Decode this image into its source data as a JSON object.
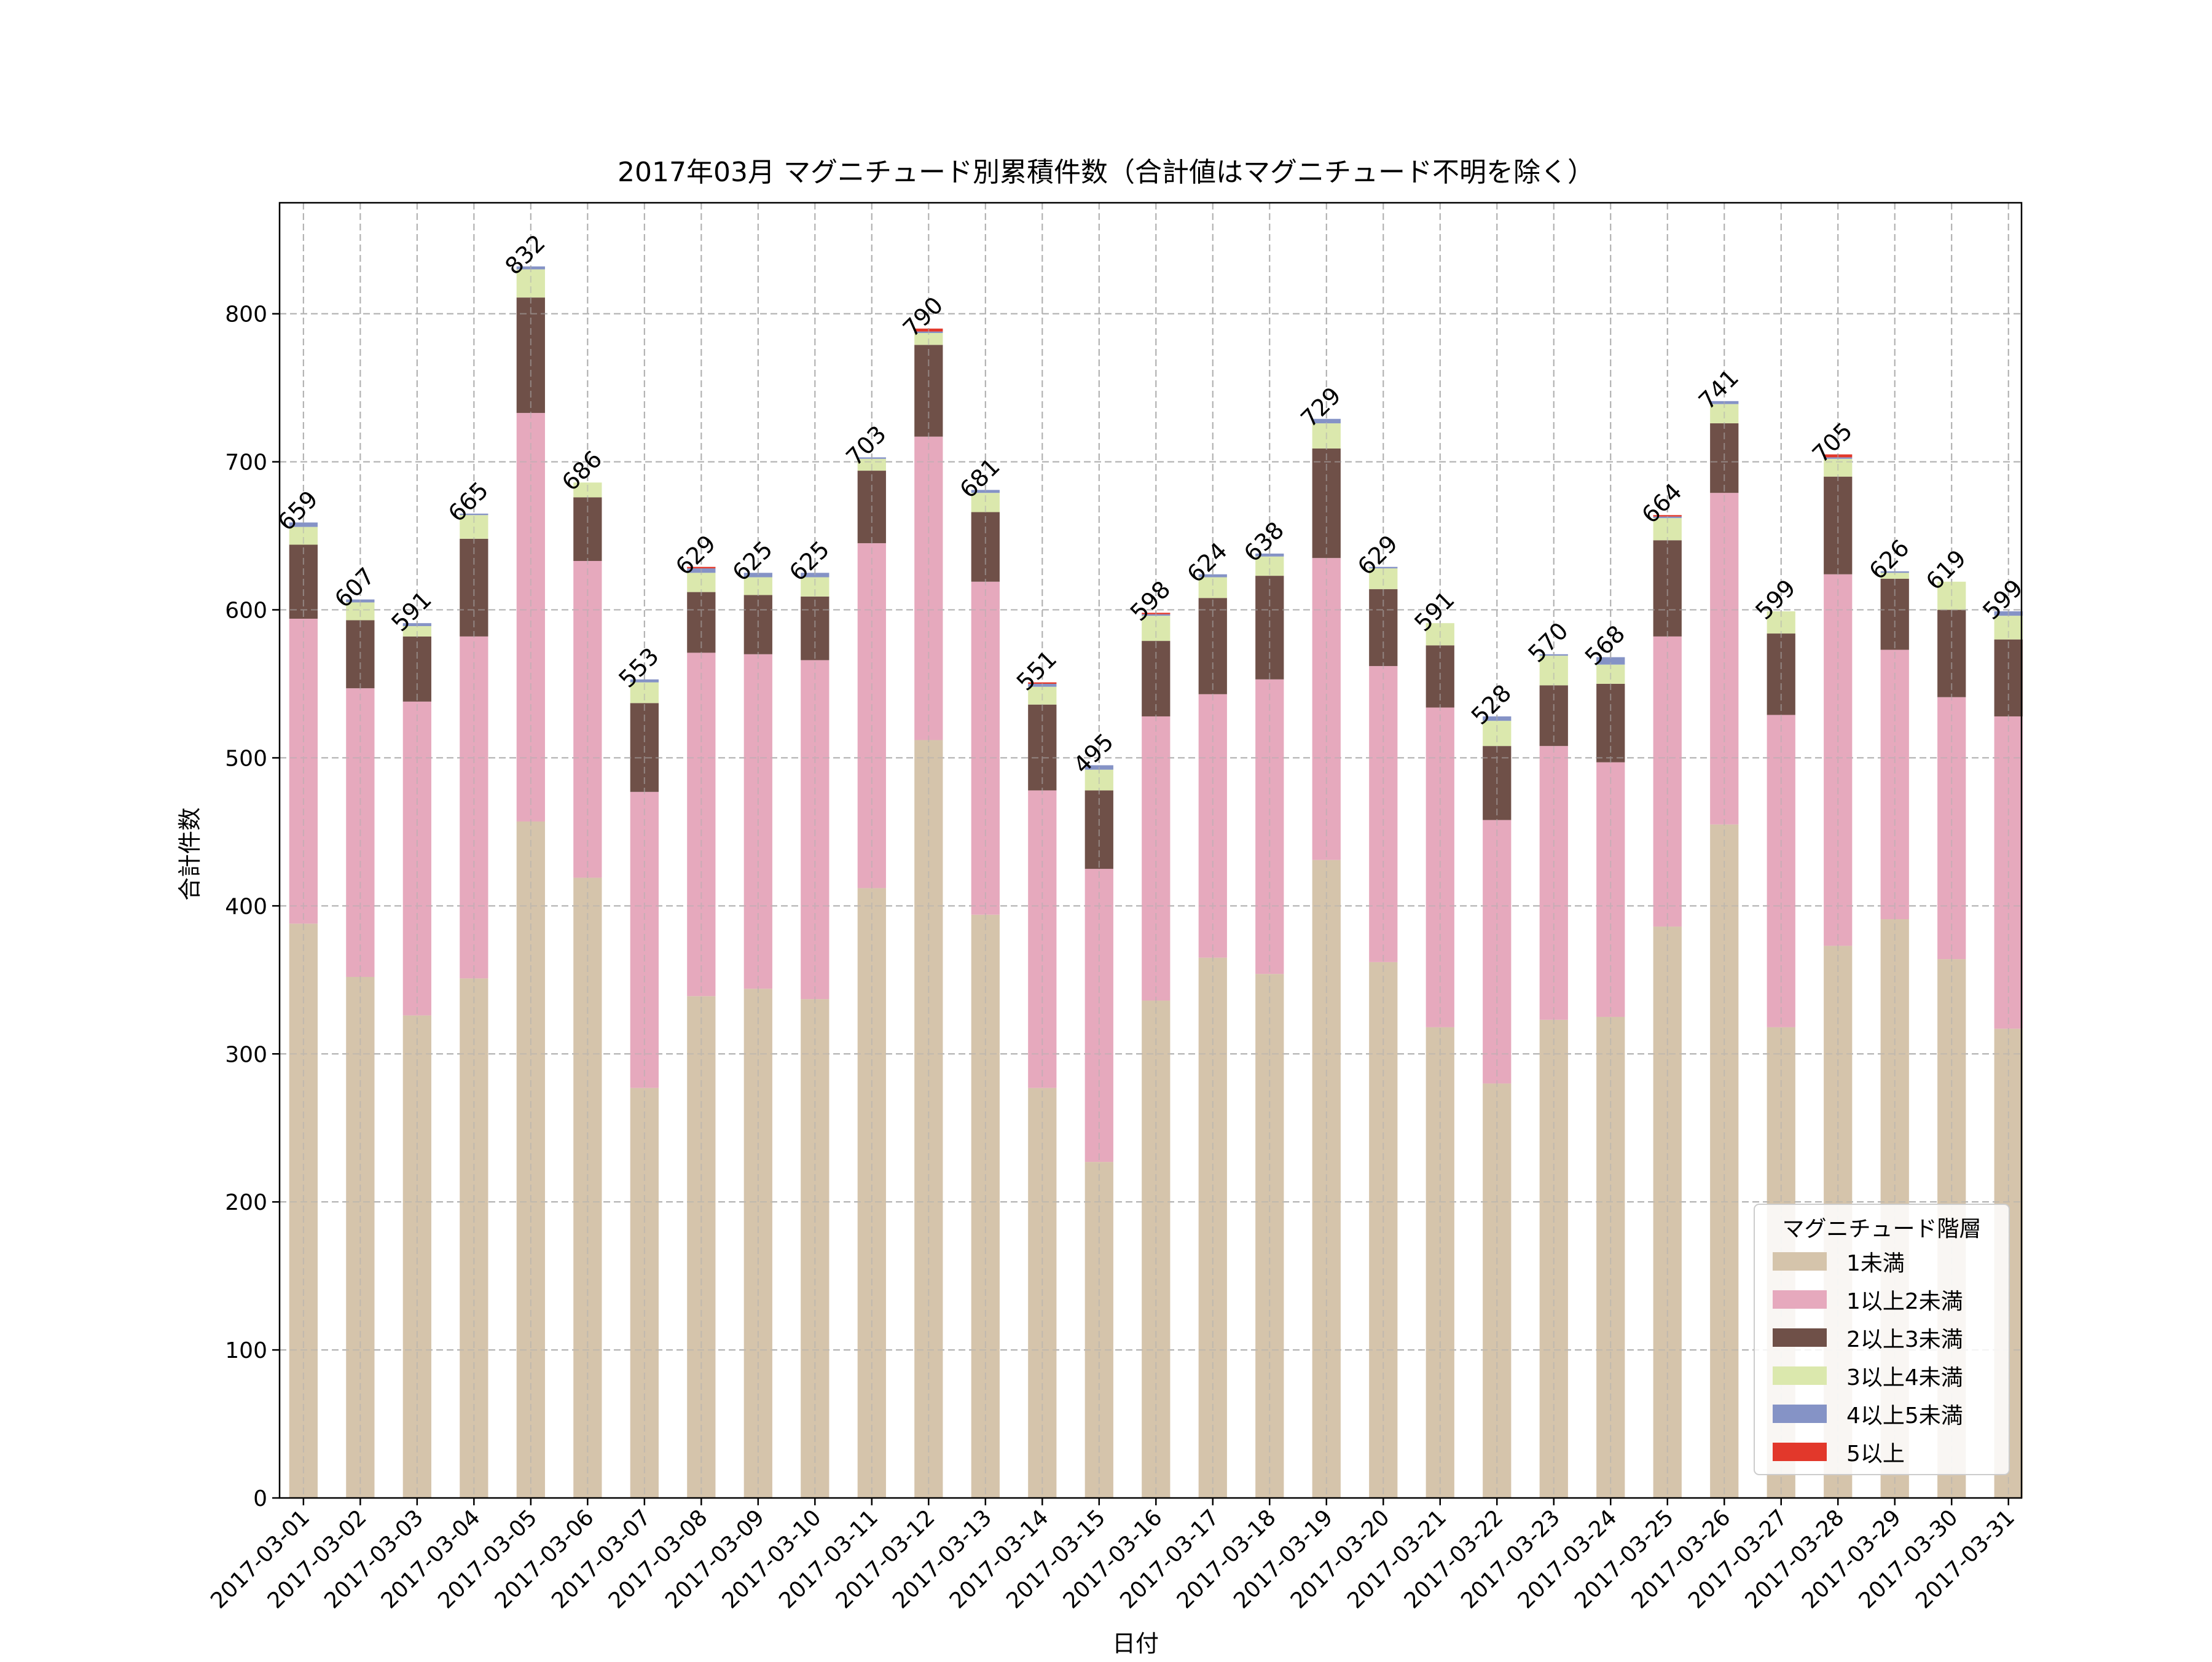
{
  "chart_data": {
    "type": "bar",
    "stacked": true,
    "title": "2017年03月 マグニチュード別累積件数（合計値はマグニチュード不明を除く）",
    "xlabel": "日付",
    "ylabel": "合計件数",
    "ylim": [
      0,
      875
    ],
    "yticks": [
      0,
      100,
      200,
      300,
      400,
      500,
      600,
      700,
      800
    ],
    "grid": true,
    "legend": {
      "title": "マグニチュード階層",
      "position": "lower-right"
    },
    "categories": [
      "2017-03-01",
      "2017-03-02",
      "2017-03-03",
      "2017-03-04",
      "2017-03-05",
      "2017-03-06",
      "2017-03-07",
      "2017-03-08",
      "2017-03-09",
      "2017-03-10",
      "2017-03-11",
      "2017-03-12",
      "2017-03-13",
      "2017-03-14",
      "2017-03-15",
      "2017-03-16",
      "2017-03-17",
      "2017-03-18",
      "2017-03-19",
      "2017-03-20",
      "2017-03-21",
      "2017-03-22",
      "2017-03-23",
      "2017-03-24",
      "2017-03-25",
      "2017-03-26",
      "2017-03-27",
      "2017-03-28",
      "2017-03-29",
      "2017-03-30",
      "2017-03-31"
    ],
    "series": [
      {
        "name": "1未満",
        "color": "#d5c4ab",
        "values": [
          388,
          352,
          326,
          351,
          457,
          419,
          277,
          339,
          344,
          337,
          412,
          512,
          394,
          277,
          227,
          336,
          365,
          354,
          431,
          362,
          318,
          280,
          323,
          325,
          386,
          455,
          318,
          373,
          391,
          364,
          317
        ]
      },
      {
        "name": "1以上2未満",
        "color": "#e6a9bd",
        "values": [
          206,
          195,
          212,
          231,
          276,
          214,
          200,
          232,
          226,
          229,
          233,
          205,
          225,
          201,
          198,
          192,
          178,
          199,
          204,
          200,
          216,
          178,
          185,
          172,
          196,
          224,
          211,
          251,
          182,
          177,
          211
        ]
      },
      {
        "name": "2以上3未満",
        "color": "#6f5048",
        "values": [
          50,
          46,
          44,
          66,
          78,
          43,
          60,
          41,
          40,
          43,
          49,
          62,
          47,
          58,
          53,
          51,
          65,
          70,
          74,
          52,
          42,
          50,
          41,
          53,
          65,
          47,
          55,
          66,
          48,
          59,
          52
        ]
      },
      {
        "name": "3以上4未満",
        "color": "#dbe8ad",
        "values": [
          12,
          12,
          7,
          16,
          19,
          10,
          14,
          13,
          12,
          13,
          8,
          8,
          13,
          12,
          14,
          17,
          14,
          13,
          17,
          14,
          15,
          17,
          20,
          13,
          15,
          13,
          15,
          12,
          4,
          19,
          16
        ]
      },
      {
        "name": "4以上5未満",
        "color": "#8593c6",
        "values": [
          3,
          2,
          2,
          1,
          2,
          0,
          2,
          3,
          3,
          3,
          1,
          1,
          2,
          2,
          3,
          1,
          2,
          2,
          3,
          1,
          0,
          3,
          1,
          5,
          1,
          2,
          0,
          1,
          1,
          0,
          3
        ]
      },
      {
        "name": "5以上",
        "color": "#e2382b",
        "values": [
          0,
          0,
          0,
          0,
          0,
          0,
          0,
          1,
          0,
          0,
          0,
          2,
          0,
          1,
          0,
          1,
          0,
          0,
          0,
          0,
          0,
          0,
          0,
          0,
          1,
          0,
          0,
          2,
          0,
          0,
          0
        ]
      }
    ],
    "totals": [
      659,
      607,
      591,
      665,
      832,
      686,
      553,
      629,
      625,
      625,
      703,
      790,
      681,
      551,
      495,
      598,
      624,
      638,
      729,
      629,
      591,
      528,
      570,
      568,
      664,
      741,
      599,
      705,
      626,
      619,
      599
    ]
  }
}
